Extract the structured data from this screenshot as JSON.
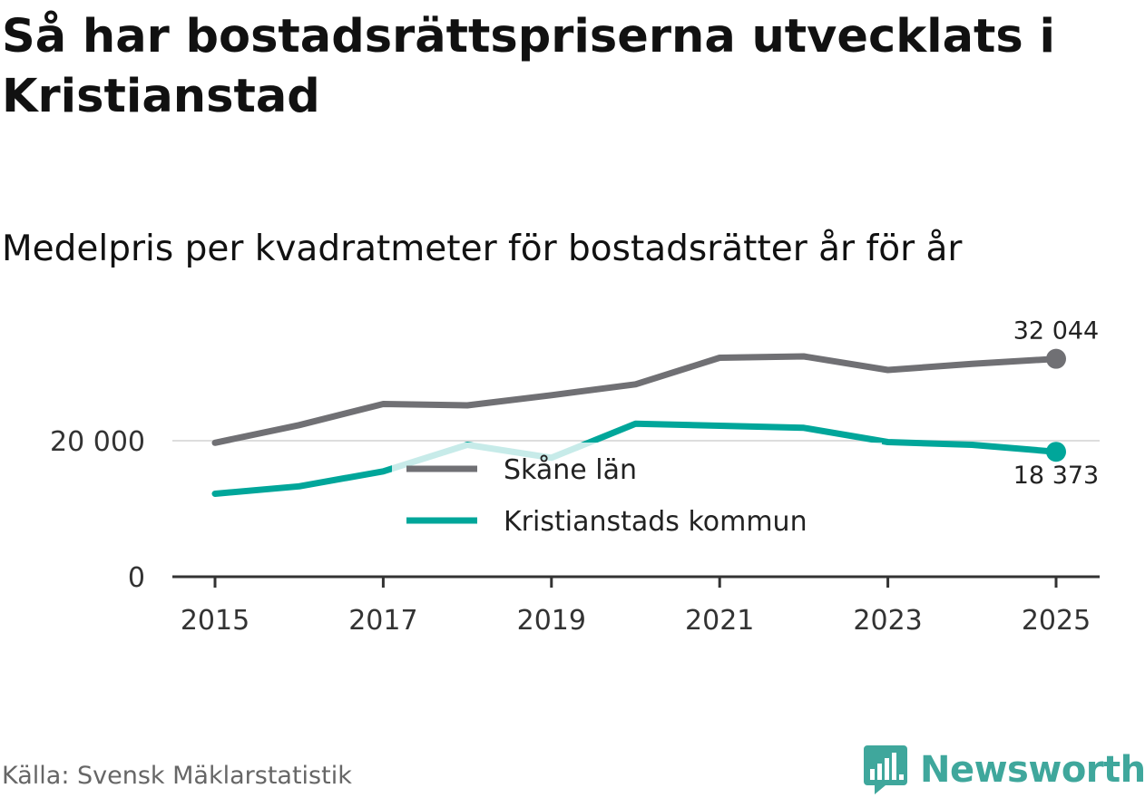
{
  "title": "Så har bostadsrättspriserna utvecklats i Kristianstad",
  "subtitle": "Medelpris per kvadratmeter för bostadsrätter år för år",
  "source": "Källa: Svensk Mäklarstatistik",
  "brand": "Newsworthy",
  "colors": {
    "skane": "#707074",
    "kristianstad": "#00a69a",
    "grid": "#dddddd",
    "axis": "#333333",
    "brand": "#3fa79c"
  },
  "chart_data": {
    "type": "line",
    "title": "Så har bostadsrättspriserna utvecklats i Kristianstad",
    "subtitle": "Medelpris per kvadratmeter för bostadsrätter år för år",
    "x": [
      2015,
      2016,
      2017,
      2018,
      2019,
      2020,
      2021,
      2022,
      2023,
      2024,
      2025
    ],
    "x_ticks": [
      "2015",
      "2017",
      "2019",
      "2021",
      "2023",
      "2025"
    ],
    "y_ticks": [
      {
        "value": 0,
        "label": "0"
      },
      {
        "value": 20000,
        "label": "20 000"
      }
    ],
    "ylim": [
      0,
      33000
    ],
    "xlim": [
      2014.5,
      2025.5
    ],
    "legend_position": "center",
    "series": [
      {
        "name": "Skåne län",
        "color": "#707074",
        "values": [
          19700,
          22300,
          25400,
          25200,
          26700,
          28300,
          32200,
          32400,
          30400,
          31300,
          32044
        ],
        "end_label": "32 044"
      },
      {
        "name": "Kristianstads kommun",
        "color": "#00a69a",
        "values": [
          12200,
          13300,
          15500,
          19400,
          17500,
          22500,
          22200,
          21900,
          19800,
          19400,
          18373
        ],
        "end_label": "18 373"
      }
    ]
  }
}
